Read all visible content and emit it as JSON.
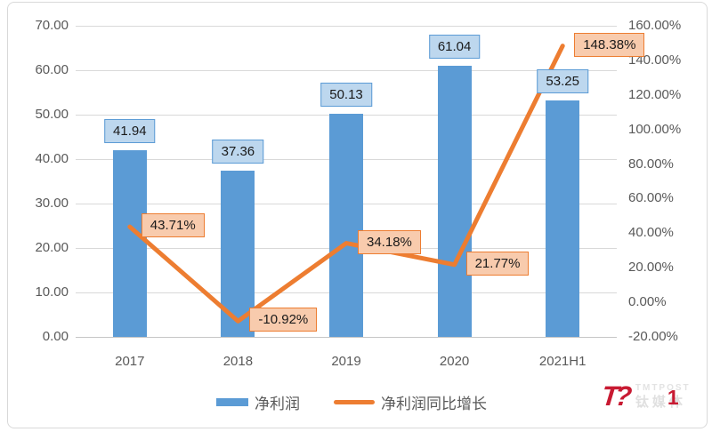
{
  "chart_data": {
    "type": "combo-bar-line",
    "categories": [
      "2017",
      "2018",
      "2019",
      "2020",
      "2021H1"
    ],
    "series": [
      {
        "name": "净利润",
        "type": "bar",
        "axis": "left",
        "color": "#5B9BD5",
        "values": [
          41.94,
          37.36,
          50.13,
          61.04,
          53.25
        ],
        "labels": [
          "41.94",
          "37.36",
          "50.13",
          "61.04",
          "53.25"
        ]
      },
      {
        "name": "净利润同比增长",
        "type": "line",
        "axis": "right",
        "color": "#ED7D31",
        "values": [
          43.71,
          -10.92,
          34.18,
          21.77,
          148.38
        ],
        "labels": [
          "43.71%",
          "-10.92%",
          "34.18%",
          "21.77%",
          "148.38%"
        ]
      }
    ],
    "left_axis": {
      "min": 0,
      "max": 70,
      "step": 10,
      "tick_labels": [
        "70.00",
        "60.00",
        "50.00",
        "40.00",
        "30.00",
        "20.00",
        "10.00",
        "0.00"
      ]
    },
    "right_axis": {
      "min": -20,
      "max": 160,
      "step": 20,
      "tick_labels": [
        "160.00%",
        "140.00%",
        "120.00%",
        "100.00%",
        "80.00%",
        "60.00%",
        "40.00%",
        "20.00%",
        "0.00%",
        "-20.00%"
      ]
    },
    "grid": true,
    "legend_position": "bottom"
  },
  "legend": {
    "items": [
      {
        "label": "净利润"
      },
      {
        "label": "净利润同比增长"
      }
    ]
  },
  "logo": {
    "mark": "T?",
    "brand_en": "TMTPOST",
    "brand_cn": "钛媒体",
    "digit": "1"
  },
  "colors": {
    "bar": "#5B9BD5",
    "line": "#ED7D31",
    "bar_label_fill": "#BDD7EE",
    "line_label_fill": "#F8CBAD",
    "axis_text": "#595959",
    "grid": "#D9D9D9",
    "logo_red": "#C81A32",
    "logo_gray": "#E2E2E2"
  }
}
